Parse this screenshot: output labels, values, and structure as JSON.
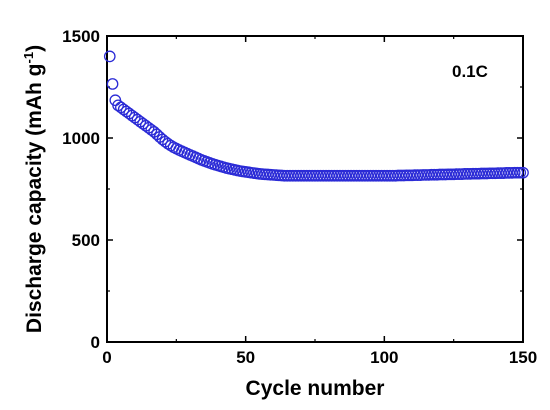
{
  "chart_data": {
    "type": "scatter",
    "xlabel": "Cycle number",
    "ylabel_main": "Discharge capacity (mAh g",
    "ylabel_sup": "-1",
    "ylabel_close": ")",
    "annotation": "0.1C",
    "xlim": [
      0,
      150
    ],
    "ylim": [
      0,
      1500
    ],
    "x_ticks": [
      "0",
      "50",
      "100",
      "150"
    ],
    "y_ticks": [
      "0",
      "500",
      "1000",
      "1500"
    ],
    "grid": false,
    "marker": "open-circle",
    "marker_color": "#2b2bd6",
    "series": [
      {
        "x": [
          1,
          2,
          3,
          4,
          5,
          6,
          7,
          8,
          9,
          10,
          11,
          12,
          13,
          14,
          15,
          16,
          17,
          18,
          19,
          20,
          21,
          22,
          23,
          24,
          25,
          26,
          27,
          28,
          29,
          30,
          31,
          32,
          33,
          34,
          35,
          36,
          37,
          38,
          39,
          40,
          41,
          42,
          43,
          44,
          45,
          46,
          47,
          48,
          49,
          50,
          51,
          52,
          53,
          54,
          55,
          56,
          57,
          58,
          59,
          60,
          61,
          62,
          63,
          64,
          65,
          66,
          67,
          68,
          69,
          70,
          71,
          72,
          73,
          74,
          75,
          76,
          77,
          78,
          79,
          80,
          81,
          82,
          83,
          84,
          85,
          86,
          87,
          88,
          89,
          90,
          91,
          92,
          93,
          94,
          95,
          96,
          97,
          98,
          99,
          100,
          101,
          102,
          103,
          104,
          105,
          106,
          107,
          108,
          109,
          110,
          111,
          112,
          113,
          114,
          115,
          116,
          117,
          118,
          119,
          120,
          121,
          122,
          123,
          124,
          125,
          126,
          127,
          128,
          129,
          130,
          131,
          132,
          133,
          134,
          135,
          136,
          137,
          138,
          139,
          140,
          141,
          142,
          143,
          144,
          145,
          146,
          147,
          148,
          149,
          150
        ],
        "y": [
          1400,
          1265,
          1185,
          1160,
          1150,
          1140,
          1130,
          1120,
          1110,
          1100,
          1090,
          1080,
          1070,
          1060,
          1050,
          1040,
          1030,
          1018,
          1005,
          993,
          982,
          972,
          963,
          955,
          948,
          941,
          935,
          929,
          923,
          917,
          911,
          905,
          899,
          893,
          888,
          883,
          878,
          873,
          869,
          865,
          861,
          857,
          853,
          850,
          847,
          844,
          841,
          838,
          836,
          834,
          832,
          830,
          828,
          826,
          824,
          823,
          822,
          821,
          820,
          819,
          818,
          817,
          816,
          815,
          815,
          815,
          815,
          815,
          815,
          815,
          815,
          815,
          815,
          815,
          815,
          815,
          815,
          815,
          815,
          815,
          815,
          815,
          815,
          815,
          815,
          815,
          815,
          815,
          815,
          815,
          815,
          815,
          815,
          815,
          815,
          815,
          815,
          815,
          815,
          815,
          815,
          815,
          815,
          815,
          816,
          816,
          816,
          817,
          817,
          817,
          818,
          818,
          818,
          819,
          819,
          819,
          820,
          820,
          820,
          821,
          821,
          821,
          822,
          822,
          822,
          823,
          823,
          823,
          824,
          824,
          824,
          825,
          825,
          825,
          826,
          826,
          826,
          827,
          827,
          827,
          828,
          828,
          828,
          829,
          829,
          829,
          830,
          830,
          830,
          830
        ]
      }
    ]
  }
}
